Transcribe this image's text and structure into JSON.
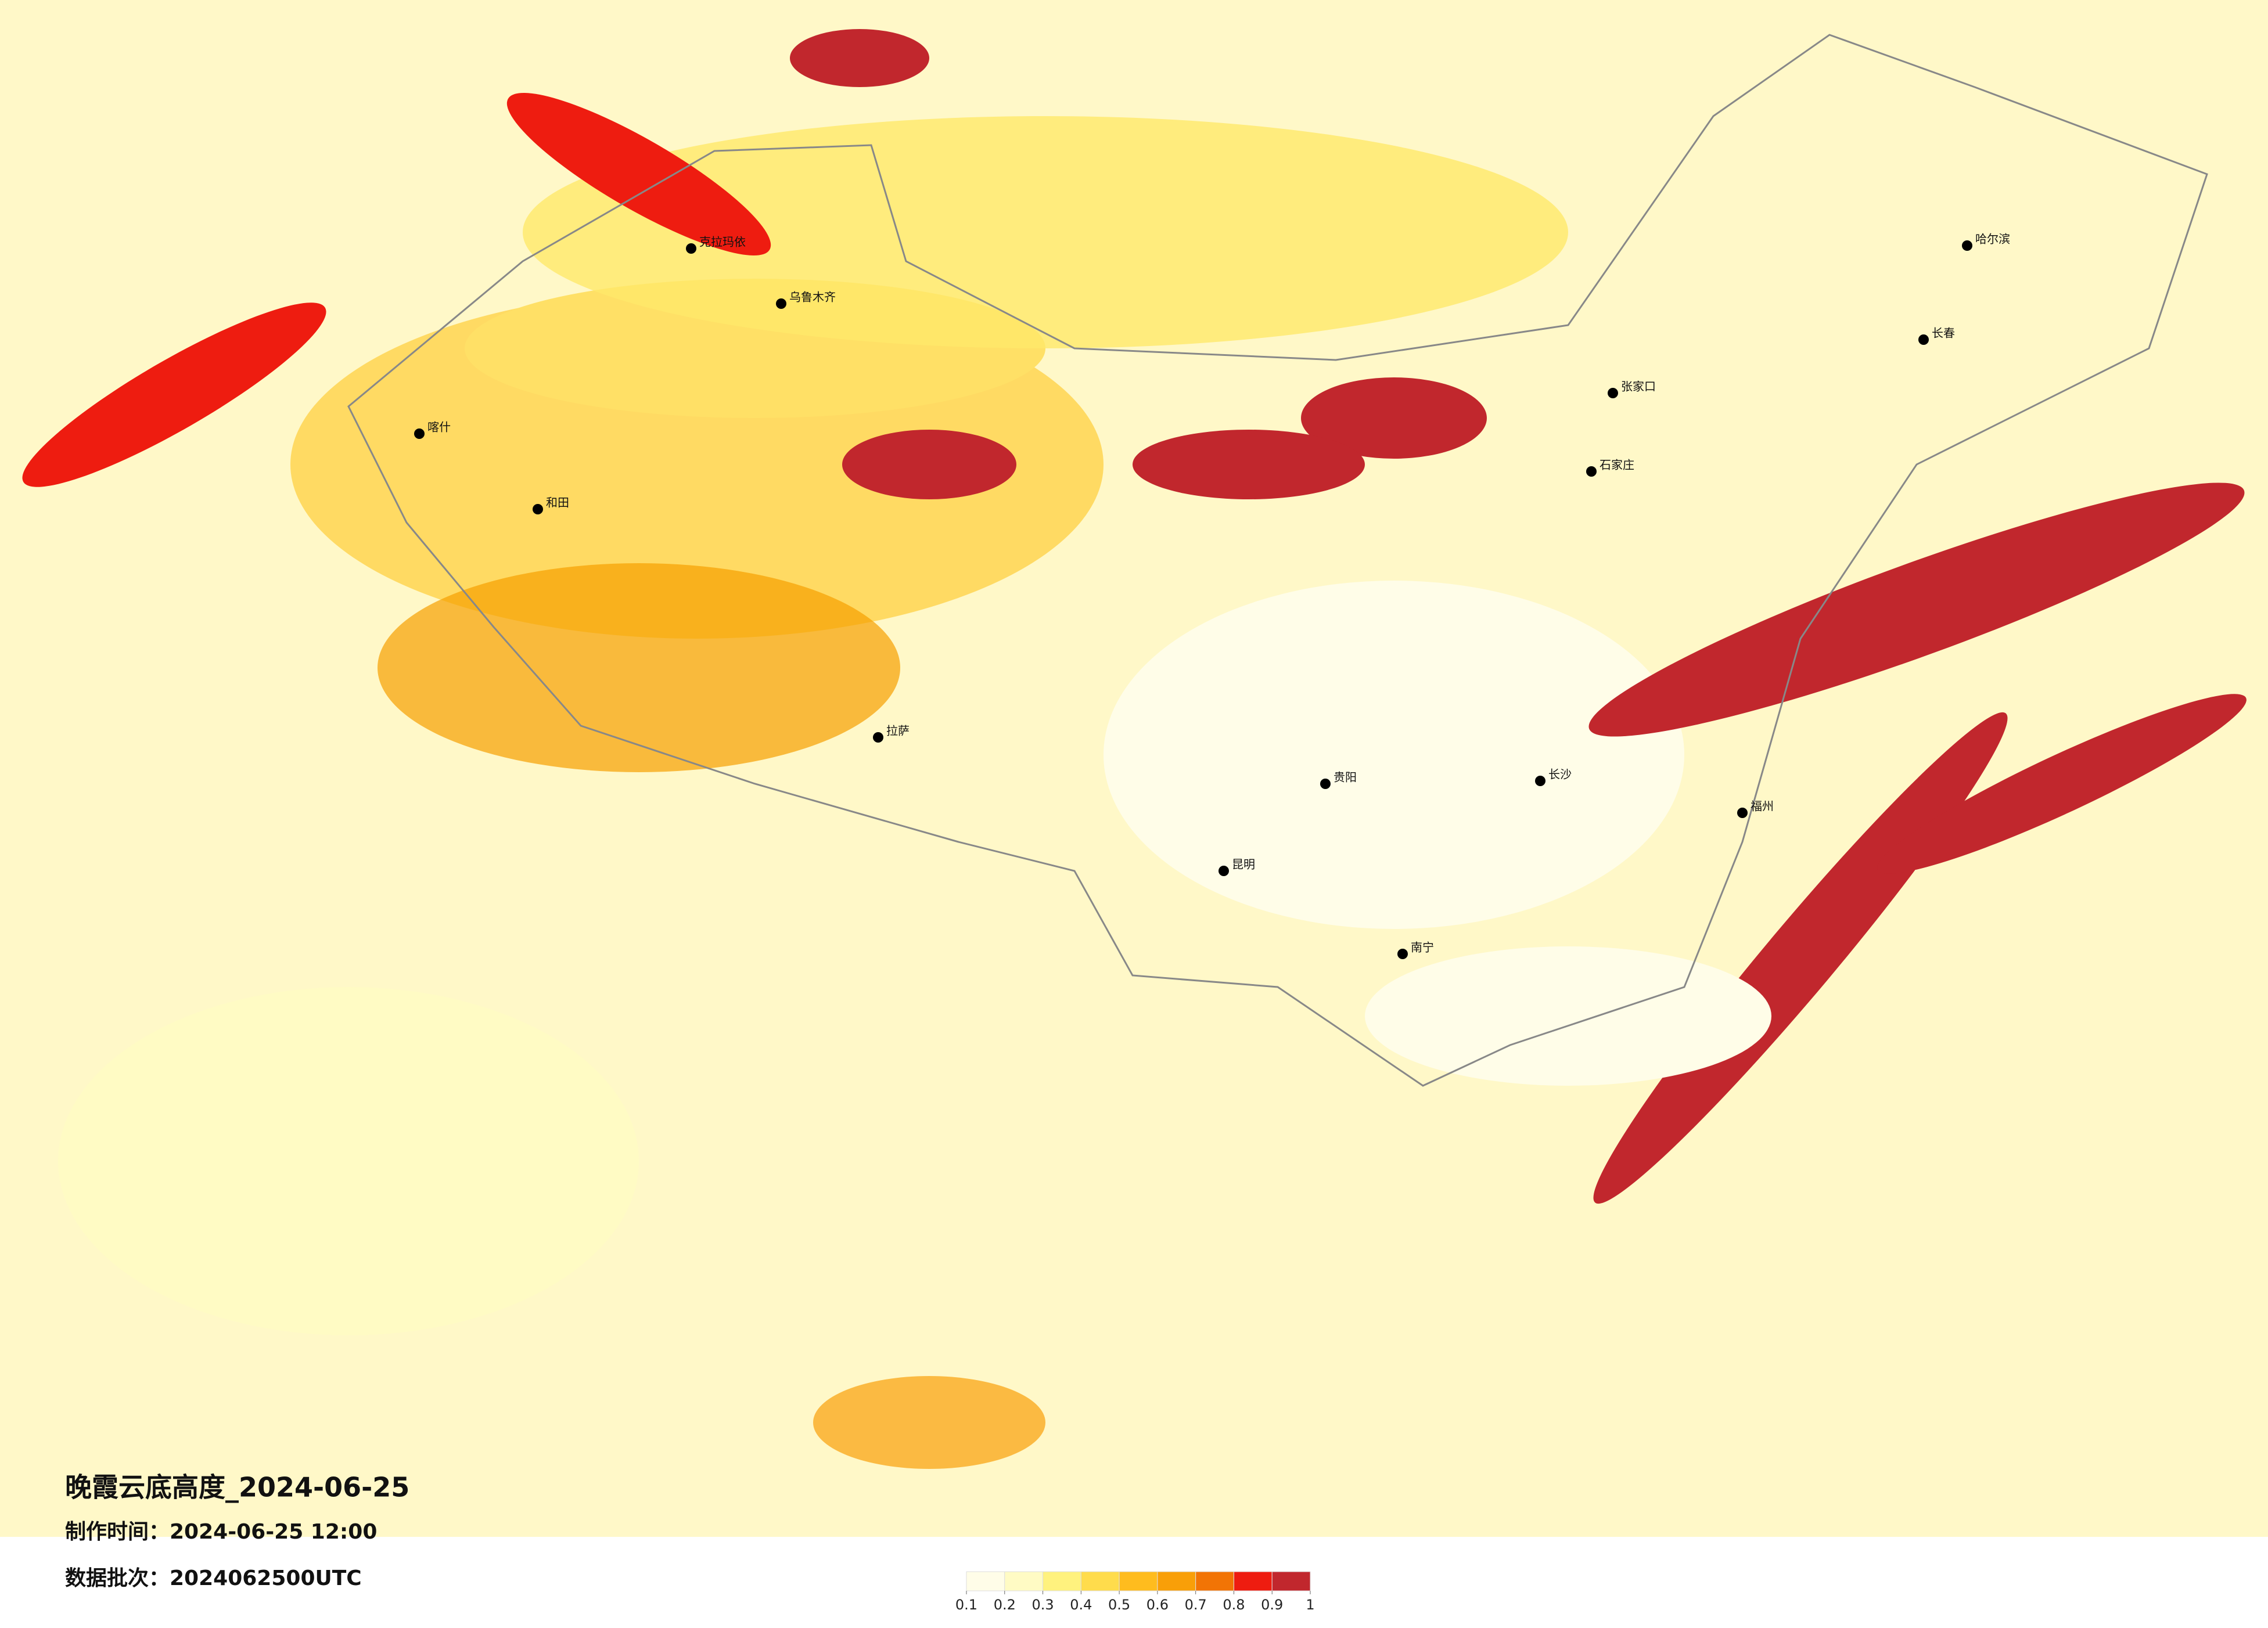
{
  "title": "晚霞云底高度_2024-06-25",
  "made_time": "制作时间：2024-06-25 12:00",
  "batch": "数据批次：2024062500UTC",
  "colorbar": {
    "ticks": [
      0.1,
      0.2,
      0.3,
      0.4,
      0.5,
      0.6,
      0.7,
      0.8,
      0.9,
      1
    ],
    "colors": [
      "#fffde8",
      "#fffbc4",
      "#fff27e",
      "#ffdc4c",
      "#ffbc1e",
      "#f99f08",
      "#f27405",
      "#ee1c10",
      "#c1272d"
    ]
  },
  "cities": [
    "克拉玛依",
    "乌鲁木齐",
    "喀什",
    "和田",
    "拉萨",
    "张家口",
    "石家庄",
    "长沙",
    "南宁",
    "哈尔滨",
    "长春",
    "贵阳",
    "昆明",
    "福州"
  ]
}
